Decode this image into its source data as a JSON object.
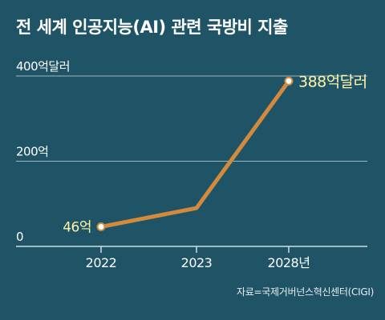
{
  "title": "전 세계 인공지능(AI) 관련 국방비 지출",
  "source": "자료=국제거버넌스혁신센터(CIGI)",
  "colors": {
    "background": "#1f5466",
    "line": "#d48a3c",
    "point": "#ffffff",
    "highlight_label": "#fff3a8",
    "grid": "#9fb6bf",
    "axis": "#cfdde2",
    "text": "#ffffff"
  },
  "chart_data": {
    "type": "line",
    "x": [
      "2022",
      "2023",
      "2028년"
    ],
    "values": [
      46,
      90,
      388
    ],
    "ylim": [
      0,
      400
    ],
    "y_ticks": [
      {
        "value": 0,
        "label": "0"
      },
      {
        "value": 200,
        "label": "200억"
      },
      {
        "value": 400,
        "label": "400억달러"
      }
    ],
    "data_labels": [
      {
        "index": 0,
        "text": "46억"
      },
      {
        "index": 2,
        "text": "388억달러"
      }
    ],
    "grid": true,
    "xlabel": "",
    "ylabel": ""
  }
}
